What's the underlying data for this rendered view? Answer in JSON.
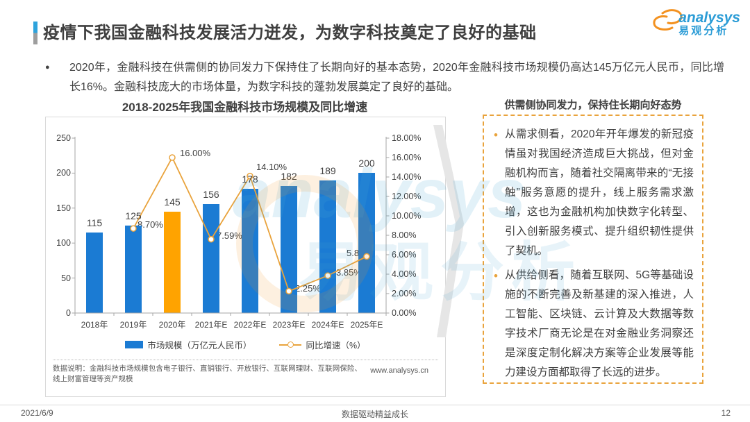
{
  "page": {
    "title": "疫情下我国金融科技发展活力迸发，为数字科技奠定了良好的基础",
    "footer": {
      "date": "2021/6/9",
      "slogan": "数据驱动精益成长",
      "page_number": "12"
    }
  },
  "logo": {
    "name": "analysys",
    "subtitle": "易观分析"
  },
  "icons": {
    "list_bullet": "●",
    "panel_bullet": "•"
  },
  "intro_bullet": "2020年，金融科技在供需侧的协同发力下保持住了长期向好的基本态势，2020年金融科技市场规模仍高达145万亿元人民币，同比增长16%。金融科技庞大的市场体量，为数字科技的蓬勃发展奠定了良好的基础。",
  "chart": {
    "title": "2018-2025年我国金融科技市场规模及同比增速",
    "legend": [
      "市场规模（万亿元人民币）",
      "同比增速（%）"
    ],
    "note": "数据说明：金融科技市场规模包含电子银行、直销银行、开放银行、互联网理财、互联网保险、线上财富管理等资产规模",
    "url": "www.analysys.cn"
  },
  "chart_data": {
    "type": "bar+line",
    "title": "2018-2025年我国金融科技市场规模及同比增速",
    "categories": [
      "2018年",
      "2019年",
      "2020年",
      "2021年E",
      "2022年E",
      "2023年E",
      "2024年E",
      "2025年E"
    ],
    "series": [
      {
        "name": "市场规模（万亿元人民币）",
        "type": "bar",
        "values": [
          115,
          125,
          145,
          156,
          178,
          182,
          189,
          200
        ],
        "colors": [
          "#1B7BD3",
          "#1B7BD3",
          "#FFA300",
          "#1B7BD3",
          "#1B7BD3",
          "#1B7BD3",
          "#1B7BD3",
          "#1B7BD3"
        ]
      },
      {
        "name": "同比增速（%）",
        "type": "line",
        "color": "#E9A33C",
        "values": [
          null,
          8.7,
          16.0,
          7.59,
          14.1,
          2.25,
          3.85,
          5.82
        ],
        "labels": [
          "",
          "8.70%",
          "16.00%",
          "7.59%",
          "14.10%",
          "2.25%",
          "3.85%",
          "5.82%"
        ]
      }
    ],
    "left_axis": {
      "min": 0,
      "max": 250,
      "step": 50,
      "ticks": [
        "0",
        "50",
        "100",
        "150",
        "200",
        "250"
      ]
    },
    "right_axis": {
      "min": 0,
      "max": 18,
      "step": 2,
      "ticks": [
        "0.00%",
        "2.00%",
        "4.00%",
        "6.00%",
        "8.00%",
        "10.00%",
        "12.00%",
        "14.00%",
        "16.00%",
        "18.00%"
      ]
    },
    "grid": false,
    "legend_position": "bottom"
  },
  "side_panel": {
    "header": "供需侧协同发力，保持住长期向好态势",
    "bullets": [
      "从需求侧看，2020年开年爆发的新冠疫情虽对我国经济造成巨大挑战，但对金融机构而言，随着社交隔离带来的“无接触”服务意愿的提升，线上服务需求激增，这也为金融机构加快数字化转型、引入创新服务模式、提升组织韧性提供了契机。",
      "从供给侧看，随着互联网、5G等基础设施的不断完善及新基建的深入推进，人工智能、区块链、云计算及大数据等数字技术厂商无论是在对金融业务洞察还是深度定制化解决方案等企业发展等能力建设方面都取得了长远的进步。"
    ]
  },
  "watermark": {
    "text_en": "analysys",
    "text_cn": "易观分析"
  },
  "colors": {
    "bar_blue": "#1B7BD3",
    "bar_highlight_orange": "#FFA300",
    "line_orange": "#E9A33C",
    "logo_blue": "#2B9CD6",
    "logo_orange": "#F39221",
    "title_accent_blue": "#2EA3DC",
    "text_dark": "#3F3F3F",
    "text_gray": "#595959",
    "border_gray": "#D9D9D9",
    "panel_border_orange": "#E9A33C"
  }
}
